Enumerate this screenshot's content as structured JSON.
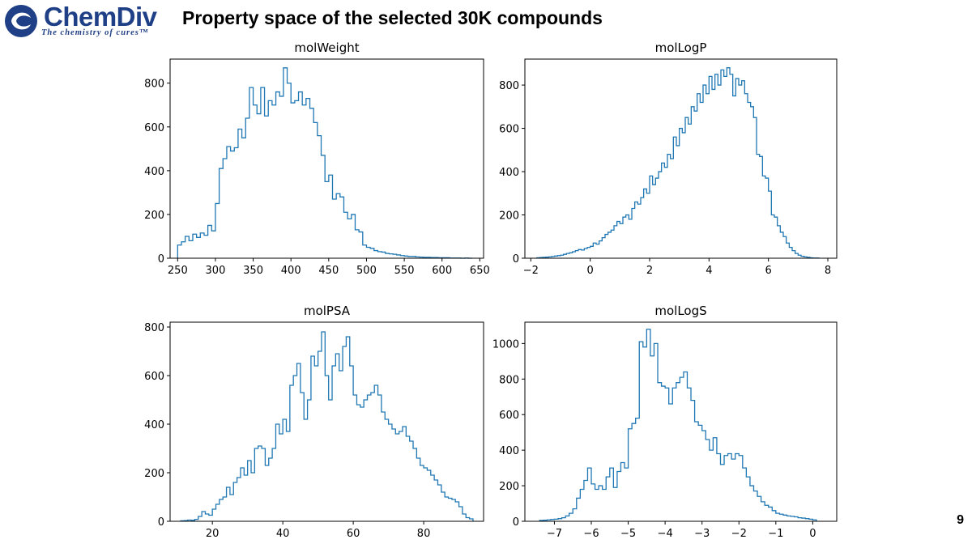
{
  "header": {
    "logo_text": "ChemDiv",
    "logo_tagline": "The chemistry of cures™",
    "title": "Property space of the selected 30K compounds"
  },
  "page_number": "9",
  "colors": {
    "brand": "#1f3f86",
    "histogram": "#1f77b4"
  },
  "chart_data": [
    {
      "type": "histogram",
      "title": "molWeight",
      "xlim": [
        240,
        655
      ],
      "ylim": [
        0,
        910
      ],
      "xticks": [
        250,
        300,
        350,
        400,
        450,
        500,
        550,
        600,
        650
      ],
      "xtick_labels": [
        "250",
        "300",
        "350",
        "400",
        "450",
        "500",
        "550",
        "600",
        "650"
      ],
      "yticks": [
        0,
        200,
        400,
        600,
        800
      ],
      "ytick_labels": [
        "0",
        "200",
        "400",
        "600",
        "800"
      ],
      "bin_start": 250,
      "bin_width": 5,
      "counts": [
        60,
        75,
        100,
        80,
        110,
        95,
        115,
        105,
        150,
        125,
        250,
        410,
        455,
        510,
        490,
        505,
        590,
        550,
        640,
        780,
        700,
        660,
        780,
        650,
        720,
        700,
        760,
        740,
        870,
        800,
        710,
        720,
        760,
        700,
        730,
        685,
        620,
        560,
        470,
        350,
        380,
        270,
        295,
        280,
        210,
        180,
        200,
        130,
        120,
        60,
        50,
        45,
        35,
        30,
        28,
        22,
        20,
        18,
        15,
        12,
        10,
        8,
        8,
        6,
        5,
        4,
        4,
        3,
        3,
        2,
        2,
        2,
        1,
        1,
        1,
        0,
        1,
        0
      ]
    },
    {
      "type": "histogram",
      "title": "molLogP",
      "xlim": [
        -2.2,
        8.3
      ],
      "ylim": [
        0,
        920
      ],
      "xticks": [
        -2,
        0,
        2,
        4,
        6,
        8
      ],
      "xtick_labels": [
        "−2",
        "0",
        "2",
        "4",
        "6",
        "8"
      ],
      "yticks": [
        0,
        200,
        400,
        600,
        800
      ],
      "ytick_labels": [
        "0",
        "200",
        "400",
        "600",
        "800"
      ],
      "bin_start": -1.8,
      "bin_width": 0.1,
      "counts": [
        2,
        3,
        4,
        5,
        6,
        8,
        10,
        12,
        14,
        18,
        22,
        25,
        30,
        35,
        40,
        38,
        45,
        50,
        55,
        70,
        65,
        80,
        95,
        110,
        120,
        130,
        150,
        170,
        160,
        190,
        200,
        180,
        230,
        260,
        250,
        280,
        320,
        300,
        380,
        340,
        370,
        400,
        440,
        420,
        480,
        460,
        560,
        520,
        600,
        580,
        650,
        620,
        700,
        680,
        760,
        720,
        800,
        760,
        840,
        780,
        850,
        800,
        870,
        840,
        880,
        850,
        750,
        830,
        800,
        820,
        760,
        720,
        700,
        650,
        480,
        470,
        380,
        370,
        310,
        200,
        190,
        150,
        120,
        100,
        70,
        50,
        35,
        22,
        14,
        9,
        6,
        4,
        2,
        1,
        1
      ]
    },
    {
      "type": "histogram",
      "title": "molPSA",
      "xlim": [
        8,
        97
      ],
      "ylim": [
        0,
        820
      ],
      "xticks": [
        20,
        40,
        60,
        80
      ],
      "xtick_labels": [
        "20",
        "40",
        "60",
        "80"
      ],
      "yticks": [
        0,
        200,
        400,
        600,
        800
      ],
      "ytick_labels": [
        "0",
        "200",
        "400",
        "600",
        "800"
      ],
      "bin_start": 11,
      "bin_width": 1,
      "counts": [
        2,
        3,
        5,
        4,
        8,
        20,
        40,
        30,
        25,
        50,
        70,
        90,
        100,
        140,
        110,
        160,
        180,
        220,
        190,
        250,
        200,
        300,
        310,
        300,
        230,
        260,
        300,
        400,
        360,
        420,
        370,
        560,
        600,
        650,
        530,
        420,
        500,
        680,
        640,
        700,
        780,
        600,
        500,
        640,
        690,
        620,
        720,
        760,
        640,
        520,
        480,
        470,
        500,
        520,
        530,
        560,
        520,
        450,
        420,
        400,
        380,
        360,
        370,
        390,
        350,
        330,
        300,
        260,
        230,
        220,
        210,
        190,
        170,
        150,
        120,
        100,
        95,
        90,
        80,
        60,
        30,
        15,
        10
      ]
    },
    {
      "type": "histogram",
      "title": "molLogS",
      "xlim": [
        -7.8,
        0.65
      ],
      "ylim": [
        0,
        1120
      ],
      "xticks": [
        -7,
        -6,
        -5,
        -4,
        -3,
        -2,
        -1,
        0
      ],
      "xtick_labels": [
        "−7",
        "−6",
        "−5",
        "−4",
        "−3",
        "−2",
        "−1",
        "0"
      ],
      "yticks": [
        0,
        200,
        400,
        600,
        800,
        1000
      ],
      "ytick_labels": [
        "0",
        "200",
        "400",
        "600",
        "800",
        "1000"
      ],
      "bin_start": -7.4,
      "bin_width": 0.1,
      "counts": [
        5,
        6,
        8,
        10,
        12,
        15,
        20,
        30,
        45,
        70,
        130,
        180,
        230,
        300,
        210,
        180,
        200,
        180,
        250,
        300,
        190,
        280,
        330,
        300,
        520,
        550,
        580,
        1010,
        980,
        1080,
        930,
        1000,
        780,
        760,
        750,
        660,
        750,
        780,
        810,
        840,
        750,
        680,
        560,
        540,
        510,
        460,
        400,
        470,
        380,
        320,
        370,
        380,
        350,
        380,
        370,
        300,
        250,
        200,
        170,
        140,
        110,
        90,
        80,
        60,
        45,
        40,
        35,
        30,
        28,
        25,
        20,
        18,
        15,
        12,
        8
      ]
    }
  ]
}
